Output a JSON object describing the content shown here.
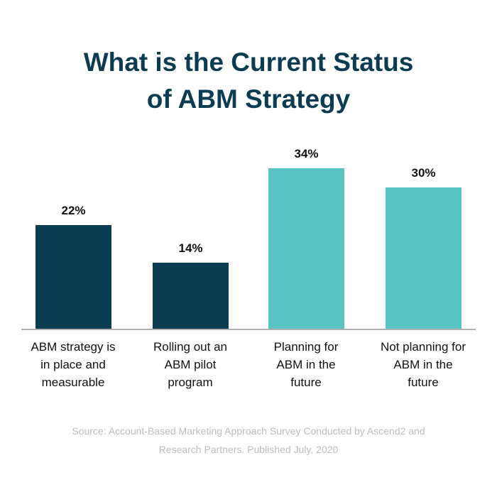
{
  "title_line1": "What is the Current Status",
  "title_line2": "of ABM Strategy",
  "source_line1": "Source: Account-Based Marketing Approach Survey Conducted by Ascend2 and",
  "source_line2": "Research Partners. Published July, 2020",
  "colors": {
    "dark": "#0c3c52",
    "teal": "#57c3c4",
    "baseline": "#b0b0b0",
    "source_text": "#bdbdbd"
  },
  "bars": [
    {
      "label_line1": "ABM strategy is",
      "label_line2": "in place and",
      "label_line3": "measurable",
      "value_label": "22%",
      "value": 22,
      "color": "#0c3c52"
    },
    {
      "label_line1": "Rolling out an",
      "label_line2": "ABM pilot",
      "label_line3": "program",
      "value_label": "14%",
      "value": 14,
      "color": "#0c3c52"
    },
    {
      "label_line1": "Planning for",
      "label_line2": "ABM in the",
      "label_line3": "future",
      "value_label": "34%",
      "value": 34,
      "color": "#57c3c4"
    },
    {
      "label_line1": "Not planning for",
      "label_line2": "ABM in the",
      "label_line3": "future",
      "value_label": "30%",
      "value": 30,
      "color": "#57c3c4"
    }
  ],
  "chart_data": {
    "type": "bar",
    "title": "What is the Current Status of ABM Strategy",
    "categories": [
      "ABM strategy is in place and measurable",
      "Rolling out an ABM pilot program",
      "Planning for ABM in the future",
      "Not planning for ABM in the future"
    ],
    "values": [
      22,
      14,
      34,
      30
    ],
    "value_labels": [
      "22%",
      "14%",
      "34%",
      "30%"
    ],
    "bar_colors": [
      "#0c3c52",
      "#0c3c52",
      "#57c3c4",
      "#57c3c4"
    ],
    "xlabel": "",
    "ylabel": "",
    "ylim": [
      0,
      36
    ],
    "grid": false,
    "legend": null,
    "annotations": [
      "Source: Account-Based Marketing Approach Survey Conducted by Ascend2 and Research Partners. Published July, 2020"
    ]
  }
}
